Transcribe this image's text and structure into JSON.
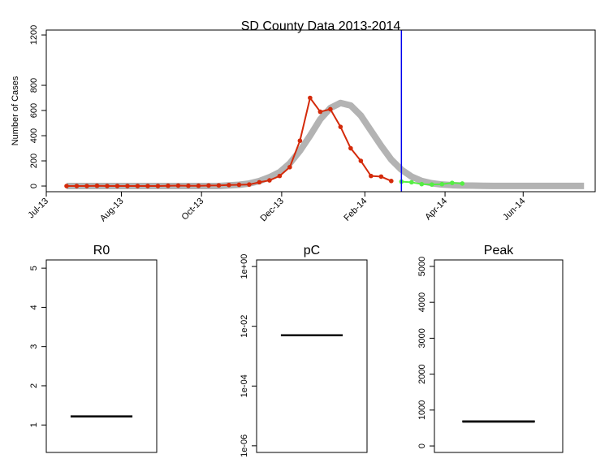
{
  "chart_data": [
    {
      "type": "line",
      "title": "SD County Data 2013-2014",
      "ylabel": "Number of Cases",
      "xlim": [
        -2,
        52.1
      ],
      "ylim": [
        -45,
        1239
      ],
      "xticks": [
        {
          "value": -2,
          "label": "Jul-13"
        },
        {
          "value": 5.4,
          "label": "Aug-13"
        },
        {
          "value": 13.3,
          "label": "Oct-13"
        },
        {
          "value": 21.2,
          "label": "Dec-13"
        },
        {
          "value": 29.4,
          "label": "Feb-14"
        },
        {
          "value": 37.3,
          "label": "Apr-14"
        },
        {
          "value": 45,
          "label": "Jun-14"
        }
      ],
      "yticks": [
        0,
        200,
        400,
        600,
        800,
        1200
      ],
      "vline": 33,
      "vline_color": "#0000ee",
      "series": [
        {
          "color": "#b3b3b3",
          "width": 8,
          "markers": false,
          "x": [
            0,
            1,
            2,
            3,
            4,
            5,
            6,
            7,
            8,
            9,
            10,
            11,
            12,
            13,
            14,
            15,
            16,
            17,
            18,
            19,
            20,
            21,
            22,
            23,
            24,
            25,
            26,
            27,
            28,
            29,
            30,
            31,
            32,
            33,
            34,
            35,
            36,
            37,
            38,
            39,
            40,
            41,
            42,
            43,
            44,
            45,
            46,
            47,
            48,
            49,
            50,
            51
          ],
          "values": [
            0,
            0,
            0,
            0,
            0,
            0,
            0,
            0,
            0,
            0,
            0,
            0,
            0,
            0,
            0,
            0,
            5,
            10,
            20,
            40,
            70,
            110,
            180,
            280,
            400,
            530,
            620,
            660,
            640,
            560,
            440,
            320,
            210,
            130,
            75,
            40,
            22,
            12,
            7,
            4,
            3,
            2,
            1,
            1,
            1,
            1,
            1,
            1,
            1,
            1,
            1,
            1
          ]
        },
        {
          "color": "#d42a0a",
          "width": 2,
          "markers": true,
          "x": [
            0,
            1,
            2,
            3,
            4,
            5,
            6,
            7,
            8,
            9,
            10,
            11,
            12,
            13,
            14,
            15,
            16,
            17,
            18,
            19,
            20,
            21,
            22,
            23,
            24,
            25,
            26,
            27,
            28,
            29,
            30,
            31,
            32
          ],
          "values": [
            0,
            0,
            0,
            2,
            0,
            0,
            0,
            0,
            0,
            0,
            2,
            3,
            2,
            2,
            4,
            5,
            8,
            10,
            12,
            30,
            45,
            80,
            150,
            360,
            700,
            590,
            610,
            470,
            300,
            200,
            80,
            75,
            40
          ]
        },
        {
          "color": "#55ee44",
          "width": 2,
          "markers": true,
          "x": [
            33,
            34,
            35,
            36,
            37,
            38,
            39
          ],
          "values": [
            35,
            30,
            15,
            12,
            15,
            25,
            20
          ]
        }
      ]
    },
    {
      "type": "box",
      "title": "R0",
      "ylim": [
        0.3,
        5.21
      ],
      "yticks": [
        1,
        2,
        3,
        4,
        5
      ],
      "median": 1.22
    },
    {
      "type": "box",
      "title": "pC",
      "log": true,
      "ylim": [
        6e-07,
        1.66
      ],
      "yticks": [
        {
          "value": 1,
          "label": "1e+00"
        },
        {
          "value": 0.01,
          "label": "1e-02"
        },
        {
          "value": 0.0001,
          "label": "1e-04"
        },
        {
          "value": 1e-06,
          "label": "1e-06"
        }
      ],
      "median": 0.005
    },
    {
      "type": "box",
      "title": "Peak",
      "ylim": [
        -180,
        5180
      ],
      "yticks": [
        0,
        1000,
        2000,
        3000,
        4000,
        5000
      ],
      "median": 680,
      "q1": 665,
      "q3": 700
    }
  ]
}
